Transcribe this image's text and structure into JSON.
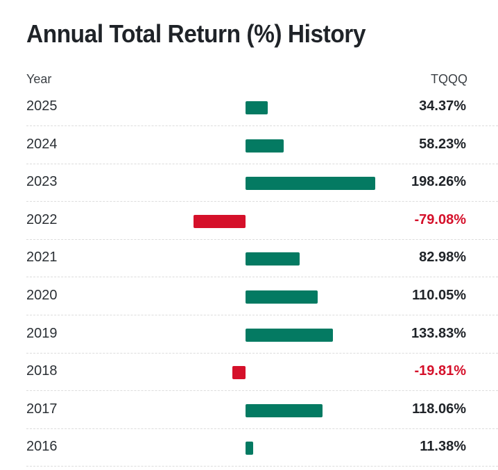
{
  "page": {
    "title": "Annual Total Return (%) History"
  },
  "table": {
    "year_header": "Year",
    "ticker_header": "TQQQ"
  },
  "colors": {
    "positive": "#047a62",
    "negative": "#d5102a",
    "text": "#1f2328"
  },
  "chart_data": {
    "type": "bar",
    "orientation": "horizontal",
    "title": "Annual Total Return (%) History",
    "categories": [
      "2025",
      "2024",
      "2023",
      "2022",
      "2021",
      "2020",
      "2019",
      "2018",
      "2017",
      "2016"
    ],
    "series": [
      {
        "name": "TQQQ",
        "values": [
          34.37,
          58.23,
          198.26,
          -79.08,
          82.98,
          110.05,
          133.83,
          -19.81,
          118.06,
          11.38
        ]
      }
    ],
    "value_labels": [
      "34.37%",
      "58.23%",
      "198.26%",
      "-79.08%",
      "82.98%",
      "110.05%",
      "133.83%",
      "-19.81%",
      "118.06%",
      "11.38%"
    ],
    "xlim": [
      -80,
      200
    ],
    "grid": false,
    "legend": "none"
  }
}
